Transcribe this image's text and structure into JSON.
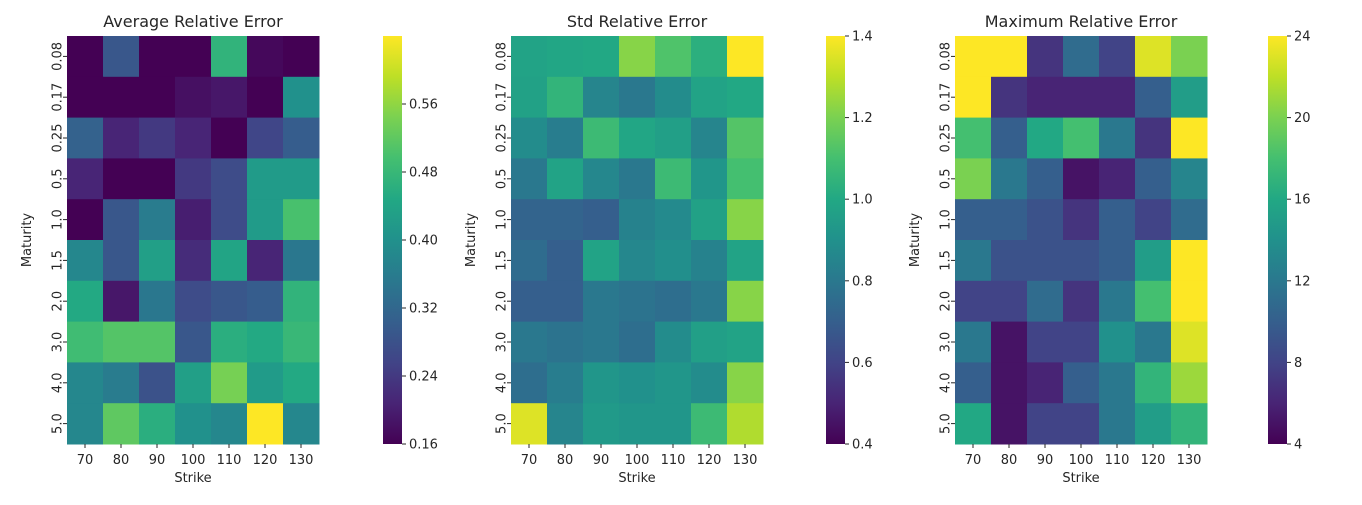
{
  "colormap": [
    "#440154",
    "#482475",
    "#414487",
    "#355f8d",
    "#2a788e",
    "#21918c",
    "#22a884",
    "#44bf70",
    "#7ad151",
    "#bddf26",
    "#fde725"
  ],
  "chart_data": [
    {
      "type": "heatmap",
      "title": "Average Relative Error",
      "xlabel": "Strike",
      "ylabel": "Maturity",
      "x": [
        "70",
        "80",
        "90",
        "100",
        "110",
        "120",
        "130"
      ],
      "y": [
        "0.08",
        "0.17",
        "0.25",
        "0.5",
        "1.0",
        "1.5",
        "2.0",
        "3.0",
        "4.0",
        "5.0"
      ],
      "colorbar": {
        "min": 0.16,
        "max": 0.64,
        "ticks": [
          "0.16",
          "0.24",
          "0.32",
          "0.40",
          "0.48",
          "0.56"
        ],
        "tick_values": [
          0.16,
          0.24,
          0.32,
          0.4,
          0.48,
          0.56
        ]
      },
      "values": [
        [
          0.16,
          0.29,
          0.16,
          0.16,
          0.47,
          0.17,
          0.16
        ],
        [
          0.16,
          0.16,
          0.16,
          0.18,
          0.19,
          0.16,
          0.4
        ],
        [
          0.31,
          0.21,
          0.24,
          0.21,
          0.16,
          0.26,
          0.3
        ],
        [
          0.21,
          0.16,
          0.16,
          0.24,
          0.27,
          0.42,
          0.42
        ],
        [
          0.16,
          0.29,
          0.36,
          0.2,
          0.27,
          0.42,
          0.5
        ],
        [
          0.38,
          0.29,
          0.43,
          0.22,
          0.44,
          0.21,
          0.35
        ],
        [
          0.45,
          0.19,
          0.35,
          0.27,
          0.29,
          0.3,
          0.47
        ],
        [
          0.49,
          0.51,
          0.51,
          0.29,
          0.46,
          0.45,
          0.48
        ],
        [
          0.38,
          0.36,
          0.28,
          0.43,
          0.54,
          0.42,
          0.45
        ],
        [
          0.38,
          0.52,
          0.46,
          0.4,
          0.38,
          0.64,
          0.38
        ]
      ]
    },
    {
      "type": "heatmap",
      "title": "Std Relative Error",
      "xlabel": "Strike",
      "ylabel": "Maturity",
      "x": [
        "70",
        "80",
        "90",
        "100",
        "110",
        "120",
        "130"
      ],
      "y": [
        "0.08",
        "0.17",
        "0.25",
        "0.5",
        "1.0",
        "1.5",
        "2.0",
        "3.0",
        "4.0",
        "5.0"
      ],
      "colorbar": {
        "min": 0.4,
        "max": 1.4,
        "ticks": [
          "0.4",
          "0.6",
          "0.8",
          "1.0",
          "1.2",
          "1.4"
        ],
        "tick_values": [
          0.4,
          0.6,
          0.8,
          1.0,
          1.2,
          1.4
        ]
      },
      "values": [
        [
          0.98,
          0.99,
          1.0,
          1.22,
          1.12,
          1.03,
          1.4
        ],
        [
          0.97,
          1.05,
          0.85,
          0.8,
          0.88,
          0.98,
          1.0
        ],
        [
          0.88,
          0.82,
          1.08,
          0.99,
          0.96,
          0.85,
          1.13
        ],
        [
          0.8,
          0.98,
          0.86,
          0.8,
          1.08,
          0.92,
          1.1
        ],
        [
          0.72,
          0.72,
          0.7,
          0.84,
          0.87,
          0.97,
          1.22
        ],
        [
          0.75,
          0.7,
          0.98,
          0.86,
          0.89,
          0.84,
          0.98
        ],
        [
          0.7,
          0.7,
          0.8,
          0.78,
          0.76,
          0.8,
          1.22
        ],
        [
          0.8,
          0.78,
          0.8,
          0.76,
          0.88,
          0.96,
          0.98
        ],
        [
          0.76,
          0.82,
          0.92,
          0.9,
          0.92,
          0.88,
          1.22
        ],
        [
          1.35,
          0.85,
          0.94,
          0.92,
          0.92,
          1.08,
          1.28
        ]
      ]
    },
    {
      "type": "heatmap",
      "title": "Maximum Relative Error",
      "xlabel": "Strike",
      "ylabel": "Maturity",
      "x": [
        "70",
        "80",
        "90",
        "100",
        "110",
        "120",
        "130"
      ],
      "y": [
        "0.08",
        "0.17",
        "0.25",
        "0.5",
        "1.0",
        "1.5",
        "2.0",
        "3.0",
        "4.0",
        "5.0"
      ],
      "colorbar": {
        "min": 4,
        "max": 24,
        "ticks": [
          "4",
          "8",
          "12",
          "16",
          "20",
          "24"
        ],
        "tick_values": [
          4,
          8,
          12,
          16,
          20,
          24
        ]
      },
      "values": [
        [
          24,
          24,
          7,
          11,
          8,
          23,
          20
        ],
        [
          24,
          7,
          6,
          6,
          6,
          10,
          15
        ],
        [
          18,
          10,
          16,
          18,
          12,
          7,
          24
        ],
        [
          20,
          12,
          10,
          5,
          6,
          10,
          13
        ],
        [
          10,
          10,
          9,
          7,
          10,
          8,
          11
        ],
        [
          12,
          9,
          9,
          9,
          10,
          15,
          24
        ],
        [
          8,
          8,
          11,
          7,
          12,
          18,
          24
        ],
        [
          12,
          5,
          8,
          8,
          14,
          12,
          23
        ],
        [
          10,
          5,
          6,
          10,
          12,
          17,
          21
        ],
        [
          16,
          5,
          8,
          8,
          12,
          15,
          17
        ]
      ]
    }
  ]
}
